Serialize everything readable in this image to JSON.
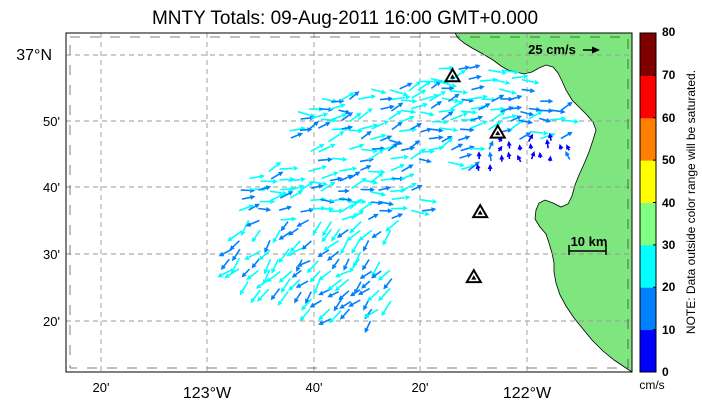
{
  "title": "MNTY Totals: 09-Aug-2011 16:00 GMT+0.000",
  "lat_labels": [
    "37°N",
    "50'",
    "40'",
    "30'",
    "20'"
  ],
  "lon_labels": [
    "20'",
    "123°W",
    "40'",
    "20'",
    "122°W"
  ],
  "scale_arrow_label": "25 cm/s",
  "distance_scale_label": "10 km",
  "colorbar": {
    "ticks": [
      "80",
      "70",
      "60",
      "50",
      "40",
      "30",
      "20",
      "10",
      "0"
    ],
    "unit": "cm/s",
    "note": "NOTE: Data outside color range will be saturated.",
    "colors": [
      "#0000ff",
      "#0080ff",
      "#00ffff",
      "#80ff80",
      "#ffff00",
      "#ff8000",
      "#ff0000",
      "#800000"
    ]
  },
  "colors": {
    "land": "#7fe57f",
    "station": "#000000"
  },
  "station_icon": "triangle-station-icon",
  "stations": [
    {
      "lat_min": 56.8,
      "lon_min": -14.0
    },
    {
      "lat_min": 48.3,
      "lon_min": -5.5
    },
    {
      "lat_min": 36.3,
      "lon_min": -8.8
    },
    {
      "lat_min": 26.5,
      "lon_min": -10.0
    }
  ]
}
